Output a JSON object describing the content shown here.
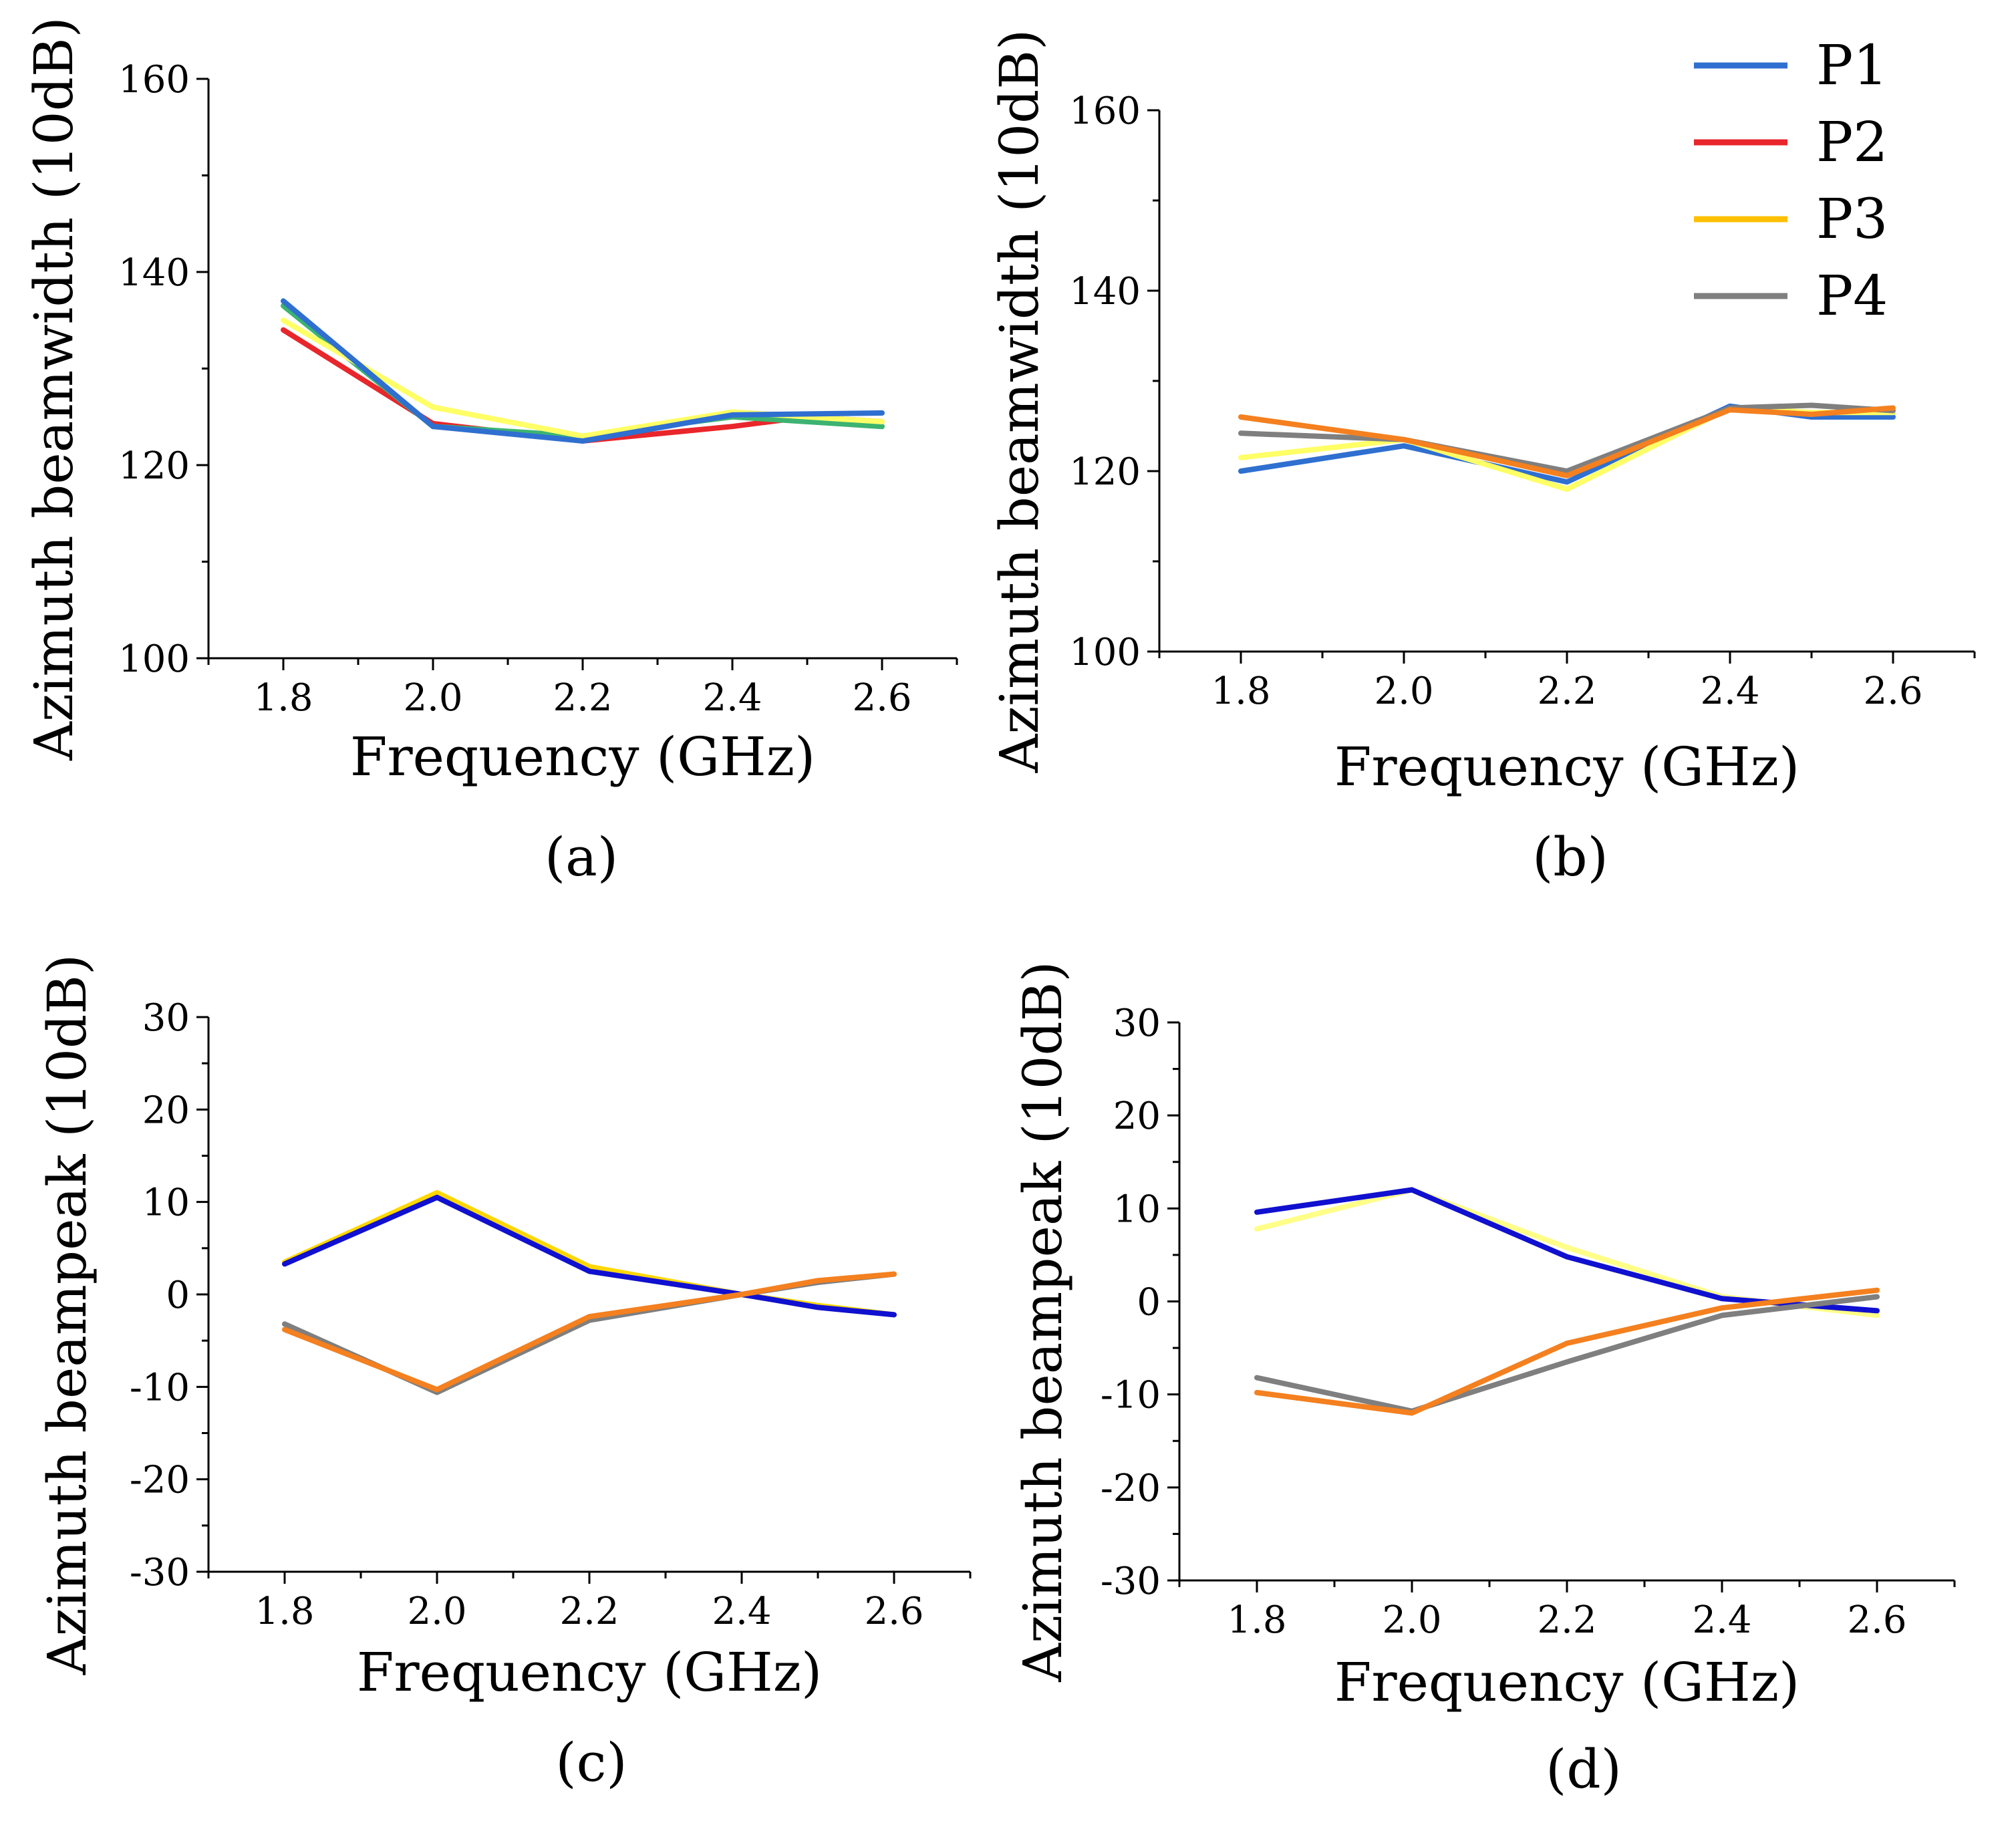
{
  "legend": [
    {
      "label": "P1",
      "color": "#2F6FD0"
    },
    {
      "label": "P2",
      "color": "#E8262B"
    },
    {
      "label": "P3",
      "color": "#FFC000"
    },
    {
      "label": "P4",
      "color": "#7F7F7F"
    }
  ],
  "chart_data": [
    {
      "type": "line",
      "panel_label": "(a)",
      "xlabel": "Frequency (GHz)",
      "ylabel": "Azimuth beamwidth (10dB)",
      "xlim": [
        1.7,
        2.7
      ],
      "ylim": [
        100,
        160
      ],
      "xticks": [
        "1.8",
        "2.0",
        "2.2",
        "2.4",
        "2.6"
      ],
      "yticks": [
        "100",
        "120",
        "140",
        "160"
      ],
      "x": [
        1.8,
        2.0,
        2.2,
        2.4,
        2.6
      ],
      "series": [
        {
          "name": "P2",
          "color": "#E8262B",
          "x": [
            1.8,
            2.0,
            2.2,
            2.4,
            2.5,
            2.6
          ],
          "values": [
            134,
            124.3,
            122.5,
            124,
            125,
            124.5
          ]
        },
        {
          "name": "P4",
          "color": "#3CB371",
          "x": [
            1.8,
            2.0,
            2.2,
            2.4,
            2.6
          ],
          "values": [
            136.5,
            124,
            123,
            125,
            124
          ]
        },
        {
          "name": "P3",
          "color": "#FFFF66",
          "x": [
            1.8,
            2.0,
            2.2,
            2.4,
            2.6
          ],
          "values": [
            135,
            126,
            123,
            125.5,
            124.5
          ]
        },
        {
          "name": "P1",
          "color": "#2F6FD0",
          "x": [
            1.8,
            2.0,
            2.2,
            2.4,
            2.6
          ],
          "values": [
            137,
            124,
            122.5,
            125.2,
            125.4
          ]
        }
      ]
    },
    {
      "type": "line",
      "panel_label": "(b)",
      "xlabel": "Frequency (GHz)",
      "ylabel": "Azimuth beamwidth (10dB)",
      "xlim": [
        1.7,
        2.7
      ],
      "ylim": [
        100,
        160
      ],
      "xticks": [
        "1.8",
        "2.0",
        "2.2",
        "2.4",
        "2.6"
      ],
      "yticks": [
        "100",
        "120",
        "140",
        "160"
      ],
      "x": [
        1.8,
        2.0,
        2.2,
        2.4,
        2.6
      ],
      "series": [
        {
          "name": "P1",
          "color": "#2F6FD0",
          "x": [
            1.8,
            2.0,
            2.2,
            2.4,
            2.5,
            2.6
          ],
          "values": [
            120,
            122.8,
            118.8,
            127.2,
            126,
            126
          ]
        },
        {
          "name": "P3",
          "color": "#FFFF66",
          "x": [
            1.8,
            2.0,
            2.2,
            2.4,
            2.5,
            2.6
          ],
          "values": [
            121.5,
            123.5,
            118,
            127,
            126.5,
            126.5
          ]
        },
        {
          "name": "P4",
          "color": "#7F7F7F",
          "x": [
            1.8,
            2.0,
            2.2,
            2.4,
            2.5,
            2.6
          ],
          "values": [
            124.2,
            123.5,
            120,
            127,
            127.3,
            126.7
          ]
        },
        {
          "name": "P2",
          "color": "#F4801F",
          "x": [
            1.8,
            2.0,
            2.2,
            2.4,
            2.5,
            2.6
          ],
          "values": [
            126,
            123.5,
            119.5,
            126.8,
            126.3,
            127
          ]
        }
      ]
    },
    {
      "type": "line",
      "panel_label": "(c)",
      "xlabel": "Frequency (GHz)",
      "ylabel": "Azimuth beampeak (10dB)",
      "xlim": [
        1.7,
        2.7
      ],
      "ylim": [
        -30,
        30
      ],
      "xticks": [
        "1.8",
        "2.0",
        "2.2",
        "2.4",
        "2.6"
      ],
      "yticks": [
        "-30",
        "-20",
        "-10",
        "0",
        "10",
        "20",
        "30"
      ],
      "x": [
        1.8,
        2.0,
        2.2,
        2.4,
        2.6
      ],
      "series": [
        {
          "name": "P3",
          "color": "#FFD700",
          "x": [
            1.8,
            2.0,
            2.2,
            2.4,
            2.5,
            2.6
          ],
          "values": [
            3.5,
            11,
            3,
            0,
            -1.2,
            -2.2
          ]
        },
        {
          "name": "P1",
          "color": "#1010D0",
          "x": [
            1.8,
            2.0,
            2.2,
            2.4,
            2.5,
            2.6
          ],
          "values": [
            3.3,
            10.5,
            2.5,
            0,
            -1.4,
            -2.2
          ]
        },
        {
          "name": "P4",
          "color": "#7F7F7F",
          "x": [
            1.8,
            2.0,
            2.2,
            2.4,
            2.5,
            2.6
          ],
          "values": [
            -3.2,
            -10.6,
            -2.8,
            0,
            1.3,
            2.2
          ]
        },
        {
          "name": "P2",
          "color": "#F4801F",
          "x": [
            1.8,
            2.0,
            2.2,
            2.4,
            2.5,
            2.6
          ],
          "values": [
            -3.8,
            -10.3,
            -2.4,
            0,
            1.5,
            2.2
          ]
        }
      ]
    },
    {
      "type": "line",
      "panel_label": "(d)",
      "xlabel": "Frequency (GHz)",
      "ylabel": "Azimuth beampeak (10dB)",
      "xlim": [
        1.7,
        2.7
      ],
      "ylim": [
        -30,
        30
      ],
      "xticks": [
        "1.8",
        "2.0",
        "2.2",
        "2.4",
        "2.6"
      ],
      "yticks": [
        "-30",
        "-20",
        "-10",
        "0",
        "10",
        "20",
        "30"
      ],
      "x": [
        1.8,
        2.0,
        2.2,
        2.4,
        2.6
      ],
      "series": [
        {
          "name": "P3",
          "color": "#FFFF88",
          "x": [
            1.8,
            2.0,
            2.2,
            2.4,
            2.6
          ],
          "values": [
            7.8,
            12,
            5.8,
            0.5,
            -1.5
          ]
        },
        {
          "name": "P1",
          "color": "#1010D0",
          "x": [
            1.8,
            2.0,
            2.2,
            2.4,
            2.6
          ],
          "values": [
            9.6,
            12,
            4.8,
            0.3,
            -1
          ]
        },
        {
          "name": "P4",
          "color": "#7F7F7F",
          "x": [
            1.8,
            2.0,
            2.2,
            2.4,
            2.6
          ],
          "values": [
            -8.2,
            -11.8,
            -6.5,
            -1.5,
            0.5
          ]
        },
        {
          "name": "P2",
          "color": "#F4801F",
          "x": [
            1.8,
            2.0,
            2.2,
            2.4,
            2.6
          ],
          "values": [
            -9.8,
            -12,
            -4.5,
            -0.7,
            1.2
          ]
        }
      ]
    }
  ]
}
